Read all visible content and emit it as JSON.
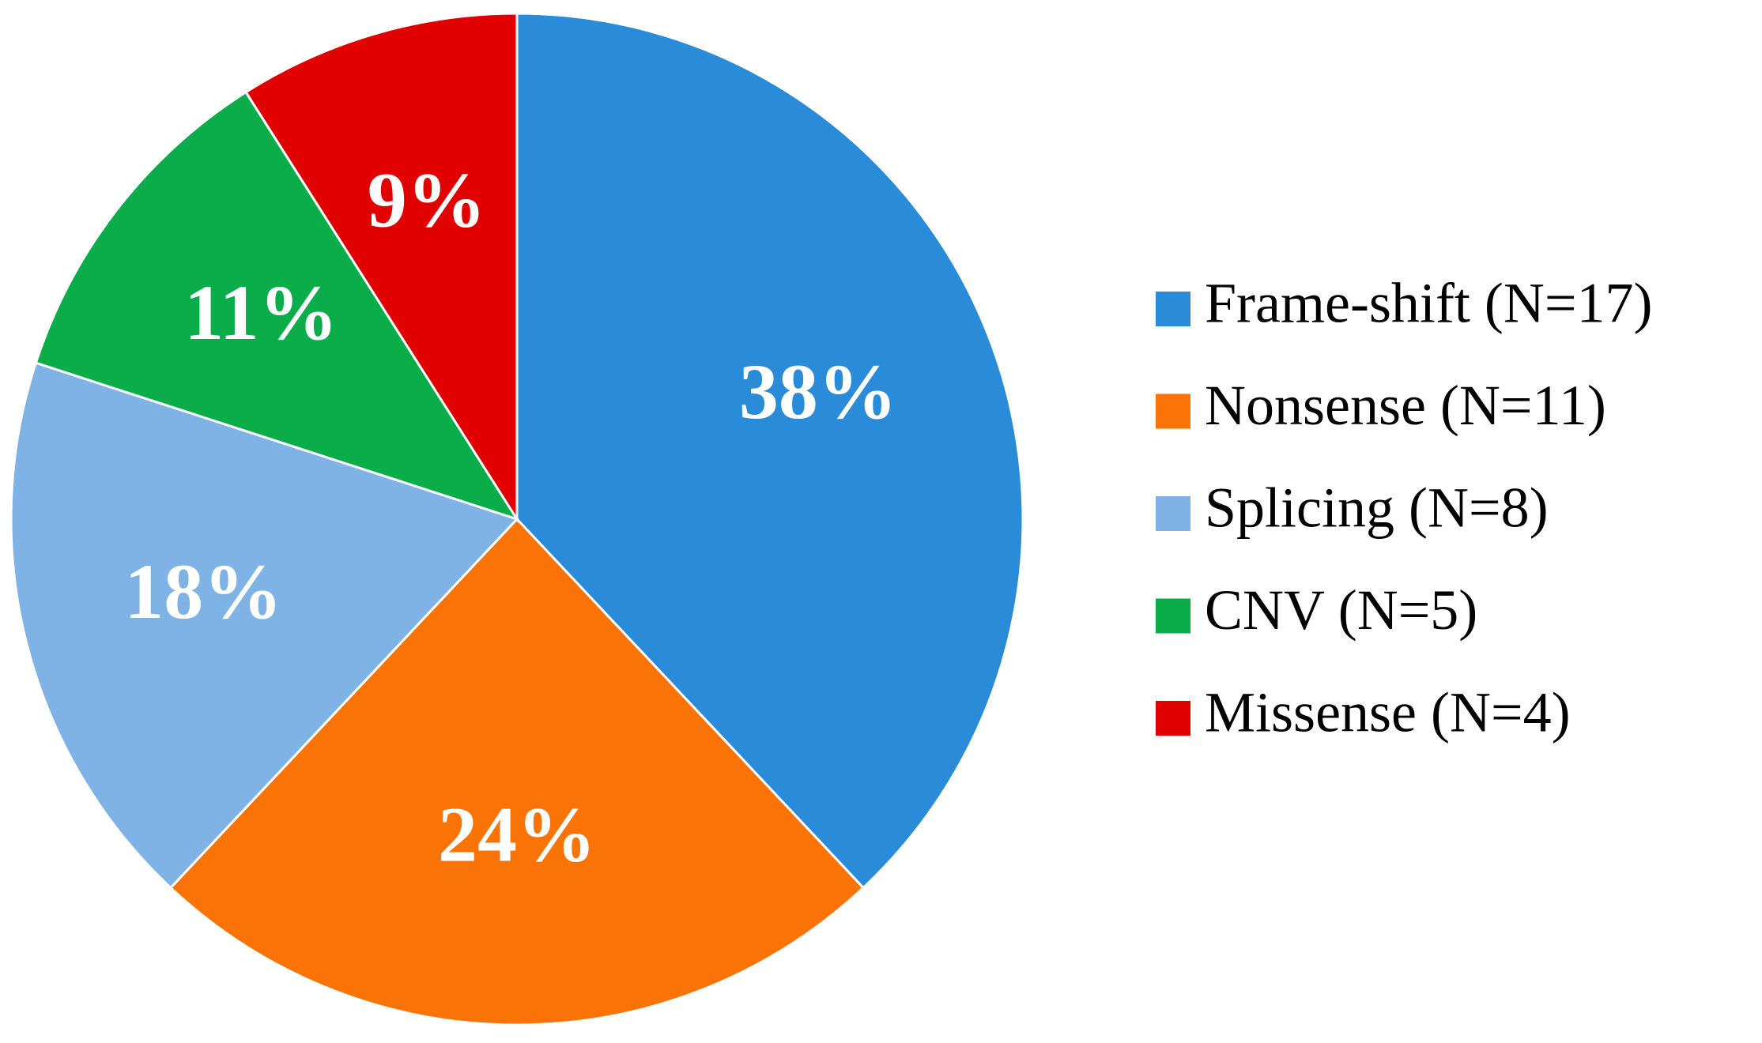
{
  "chart_data": {
    "type": "pie",
    "categories": [
      "Frame-shift (N=17)",
      "Nonsense (N=11)",
      "Splicing (N=8)",
      "CNV (N=5)",
      "Missense (N=4)"
    ],
    "values": [
      38,
      24,
      18,
      11,
      9
    ],
    "value_labels": [
      "38%",
      "24%",
      "18%",
      "11%",
      "9%"
    ],
    "colors": [
      "#2a8bd8",
      "#f97306",
      "#7fb2e5",
      "#0aad4a",
      "#e00000"
    ]
  }
}
